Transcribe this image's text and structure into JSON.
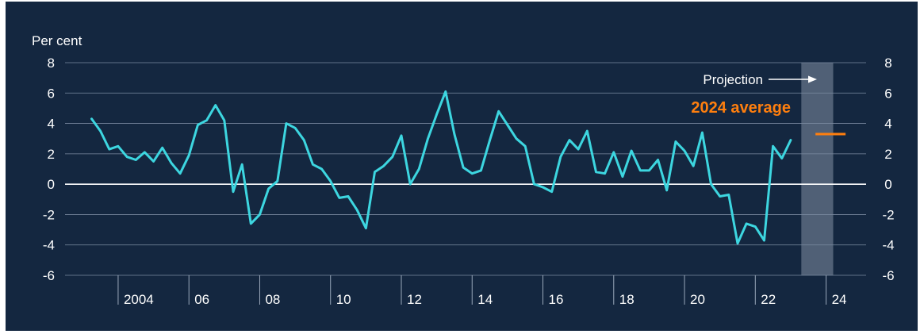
{
  "chart_data": {
    "type": "line",
    "ylabel": "Per cent",
    "ylim": [
      -6,
      8
    ],
    "yticks": [
      8,
      6,
      4,
      2,
      0,
      -2,
      -4,
      -6
    ],
    "grid": true,
    "x_axis_labels": [
      {
        "label": "2004",
        "year": 2004
      },
      {
        "label": "06",
        "year": 2006
      },
      {
        "label": "08",
        "year": 2008
      },
      {
        "label": "10",
        "year": 2010
      },
      {
        "label": "12",
        "year": 2012
      },
      {
        "label": "14",
        "year": 2014
      },
      {
        "label": "16",
        "year": 2016
      },
      {
        "label": "18",
        "year": 2018
      },
      {
        "label": "20",
        "year": 2020
      },
      {
        "label": "22",
        "year": 2022
      },
      {
        "label": "24",
        "year": 2024
      }
    ],
    "series": [
      {
        "color": "#3dd6e0",
        "points": [
          [
            2003.25,
            4.3
          ],
          [
            2003.5,
            3.5
          ],
          [
            2003.75,
            2.3
          ],
          [
            2004.0,
            2.5
          ],
          [
            2004.25,
            1.8
          ],
          [
            2004.5,
            1.6
          ],
          [
            2004.75,
            2.1
          ],
          [
            2005.0,
            1.5
          ],
          [
            2005.25,
            2.4
          ],
          [
            2005.5,
            1.4
          ],
          [
            2005.75,
            0.7
          ],
          [
            2006.0,
            1.9
          ],
          [
            2006.25,
            3.9
          ],
          [
            2006.5,
            4.2
          ],
          [
            2006.75,
            5.2
          ],
          [
            2007.0,
            4.2
          ],
          [
            2007.25,
            -0.5
          ],
          [
            2007.5,
            1.3
          ],
          [
            2007.75,
            -2.6
          ],
          [
            2008.0,
            -2.0
          ],
          [
            2008.25,
            -0.3
          ],
          [
            2008.5,
            0.2
          ],
          [
            2008.75,
            4.0
          ],
          [
            2009.0,
            3.7
          ],
          [
            2009.25,
            2.9
          ],
          [
            2009.5,
            1.3
          ],
          [
            2009.75,
            1.0
          ],
          [
            2010.0,
            0.2
          ],
          [
            2010.25,
            -0.9
          ],
          [
            2010.5,
            -0.8
          ],
          [
            2010.75,
            -1.7
          ],
          [
            2011.0,
            -2.9
          ],
          [
            2011.25,
            0.8
          ],
          [
            2011.5,
            1.2
          ],
          [
            2011.75,
            1.8
          ],
          [
            2012.0,
            3.2
          ],
          [
            2012.25,
            0.0
          ],
          [
            2012.5,
            1.0
          ],
          [
            2012.75,
            3.0
          ],
          [
            2013.0,
            4.6
          ],
          [
            2013.25,
            6.1
          ],
          [
            2013.5,
            3.3
          ],
          [
            2013.75,
            1.1
          ],
          [
            2014.0,
            0.7
          ],
          [
            2014.25,
            0.9
          ],
          [
            2014.5,
            2.9
          ],
          [
            2014.75,
            4.8
          ],
          [
            2015.0,
            3.9
          ],
          [
            2015.25,
            3.0
          ],
          [
            2015.5,
            2.5
          ],
          [
            2015.75,
            0.0
          ],
          [
            2016.0,
            -0.2
          ],
          [
            2016.25,
            -0.5
          ],
          [
            2016.5,
            1.8
          ],
          [
            2016.75,
            2.9
          ],
          [
            2017.0,
            2.3
          ],
          [
            2017.25,
            3.5
          ],
          [
            2017.5,
            0.8
          ],
          [
            2017.75,
            0.7
          ],
          [
            2018.0,
            2.1
          ],
          [
            2018.25,
            0.5
          ],
          [
            2018.5,
            2.2
          ],
          [
            2018.75,
            0.9
          ],
          [
            2019.0,
            0.9
          ],
          [
            2019.25,
            1.6
          ],
          [
            2019.5,
            -0.4
          ],
          [
            2019.75,
            2.8
          ],
          [
            2020.0,
            2.2
          ],
          [
            2020.25,
            1.2
          ],
          [
            2020.5,
            3.4
          ],
          [
            2020.75,
            0.0
          ],
          [
            2021.0,
            -0.8
          ],
          [
            2021.25,
            -0.7
          ],
          [
            2021.5,
            -3.9
          ],
          [
            2021.75,
            -2.6
          ],
          [
            2022.0,
            -2.8
          ],
          [
            2022.25,
            -3.7
          ],
          [
            2022.5,
            2.5
          ],
          [
            2022.75,
            1.7
          ],
          [
            2023.0,
            2.9
          ]
        ]
      }
    ],
    "projection": {
      "label": "Projection",
      "year_from": 2023.3,
      "year_to": 2024.2,
      "shade_color": "#5a6b80"
    },
    "average_marker": {
      "label": "2024 average",
      "value": 3.3,
      "color": "#ff7f0e"
    }
  }
}
